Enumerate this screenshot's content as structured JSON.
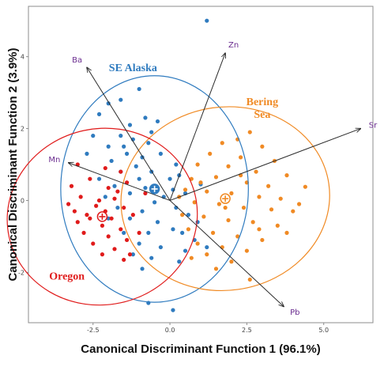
{
  "colors": {
    "se_alaska": "#2f7bbf",
    "bering_sea": "#f08a24",
    "oregon": "#e01b1b",
    "vector": "#2b2b2b",
    "vector_label": "#6a2c8f",
    "frame": "#8c8c8c"
  },
  "chart_data": {
    "type": "scatter",
    "xlabel": "Canonical Discriminant Function 1 (96.1%)",
    "ylabel": "Canonical Discriminant Function 2 (3.9%)",
    "xlim": [
      -4.6,
      6.6
    ],
    "ylim": [
      -3.4,
      5.4
    ],
    "grid": false,
    "x_ticks": [
      {
        "value": -2.5,
        "label": "-2.5"
      },
      {
        "value": 0,
        "label": "0.0"
      },
      {
        "value": 2.5,
        "label": "2.5"
      },
      {
        "value": 5,
        "label": "5.0"
      }
    ],
    "y_ticks": [
      {
        "value": -2,
        "label": "-2"
      },
      {
        "value": 0,
        "label": "0"
      },
      {
        "value": 2,
        "label": "2"
      },
      {
        "value": 4,
        "label": "4"
      }
    ],
    "vectors": [
      {
        "name": "Ba",
        "x": -2.7,
        "y": 3.7
      },
      {
        "name": "Zn",
        "x": 1.8,
        "y": 4.1
      },
      {
        "name": "Sr",
        "x": 6.2,
        "y": 2.0
      },
      {
        "name": "Mn",
        "x": -3.3,
        "y": 1.05
      },
      {
        "name": "Pb",
        "x": 3.7,
        "y": -2.95
      }
    ],
    "groups": [
      {
        "name": "SE Alaska",
        "color_key": "se_alaska",
        "label_lines": [
          "SE Alaska"
        ],
        "label_at": [
          -1.2,
          3.6
        ],
        "centroid": [
          -0.5,
          0.32
        ],
        "ellipse": {
          "rx": 3.05,
          "ry": 3.15,
          "rotate": 0
        },
        "points": [
          [
            1.2,
            5.0
          ],
          [
            -1.0,
            3.1
          ],
          [
            -1.6,
            2.8
          ],
          [
            -2.0,
            2.7
          ],
          [
            -0.8,
            2.3
          ],
          [
            -1.3,
            2.1
          ],
          [
            -2.3,
            2.4
          ],
          [
            -0.4,
            2.2
          ],
          [
            -1.6,
            1.8
          ],
          [
            -2.5,
            1.8
          ],
          [
            -1.2,
            1.7
          ],
          [
            -0.7,
            1.6
          ],
          [
            -2.0,
            1.5
          ],
          [
            -1.4,
            1.3
          ],
          [
            -0.9,
            1.2
          ],
          [
            -2.7,
            1.3
          ],
          [
            -1.9,
            1.1
          ],
          [
            -0.3,
            1.3
          ],
          [
            -1.1,
            0.95
          ],
          [
            0.2,
            1.0
          ],
          [
            -1.6,
            0.8
          ],
          [
            -0.6,
            0.8
          ],
          [
            -2.3,
            0.6
          ],
          [
            -1.0,
            0.6
          ],
          [
            0.3,
            0.7
          ],
          [
            -1.8,
            0.4
          ],
          [
            -0.8,
            0.35
          ],
          [
            -1.3,
            0.2
          ],
          [
            0.1,
            0.3
          ],
          [
            -2.1,
            0.1
          ],
          [
            -0.5,
            -0.05
          ],
          [
            -1.7,
            -0.2
          ],
          [
            -0.9,
            -0.3
          ],
          [
            0.2,
            -0.2
          ],
          [
            -1.3,
            -0.5
          ],
          [
            -0.4,
            -0.6
          ],
          [
            -2.0,
            -0.5
          ],
          [
            -0.7,
            -0.9
          ],
          [
            -1.5,
            -0.9
          ],
          [
            0.1,
            -0.8
          ],
          [
            -1.0,
            -1.2
          ],
          [
            -0.3,
            -1.3
          ],
          [
            0.5,
            -1.4
          ],
          [
            -0.6,
            -1.6
          ],
          [
            0.8,
            -1.1
          ],
          [
            0.4,
            -0.9
          ],
          [
            0.6,
            -0.4
          ],
          [
            0.9,
            -0.6
          ],
          [
            1.2,
            -1.3
          ],
          [
            0.3,
            -1.7
          ],
          [
            -0.7,
            -2.85
          ],
          [
            0.1,
            -3.05
          ],
          [
            -0.9,
            -1.9
          ],
          [
            -1.2,
            -1.5
          ],
          [
            0.0,
            0.6
          ],
          [
            -0.2,
            0.1
          ],
          [
            0.5,
            0.2
          ],
          [
            1.0,
            0.45
          ],
          [
            -1.5,
            1.5
          ],
          [
            -0.6,
            1.9
          ]
        ]
      },
      {
        "name": "Bering Sea",
        "color_key": "bering_sea",
        "label_lines": [
          "Bering",
          "Sea"
        ],
        "label_at": [
          3.0,
          2.65
        ],
        "centroid": [
          1.8,
          0.05
        ],
        "ellipse": {
          "rx": 3.4,
          "ry": 2.55,
          "rotate": -8
        },
        "points": [
          [
            2.6,
            1.9
          ],
          [
            2.2,
            1.7
          ],
          [
            1.7,
            1.6
          ],
          [
            3.0,
            1.5
          ],
          [
            1.3,
            1.3
          ],
          [
            2.3,
            1.2
          ],
          [
            3.4,
            1.1
          ],
          [
            0.9,
            1.0
          ],
          [
            1.9,
            0.95
          ],
          [
            2.8,
            0.8
          ],
          [
            3.8,
            0.7
          ],
          [
            0.7,
            0.6
          ],
          [
            1.5,
            0.65
          ],
          [
            2.5,
            0.5
          ],
          [
            3.2,
            0.4
          ],
          [
            4.4,
            0.38
          ],
          [
            0.5,
            0.3
          ],
          [
            1.2,
            0.25
          ],
          [
            2.0,
            0.2
          ],
          [
            2.9,
            0.1
          ],
          [
            3.6,
            0.05
          ],
          [
            0.8,
            -0.05
          ],
          [
            1.6,
            -0.1
          ],
          [
            2.4,
            -0.2
          ],
          [
            3.3,
            -0.25
          ],
          [
            4.0,
            -0.3
          ],
          [
            0.4,
            -0.4
          ],
          [
            1.1,
            -0.45
          ],
          [
            1.9,
            -0.55
          ],
          [
            2.7,
            -0.6
          ],
          [
            3.5,
            -0.7
          ],
          [
            0.6,
            -0.8
          ],
          [
            1.4,
            -0.9
          ],
          [
            2.2,
            -1.0
          ],
          [
            3.0,
            -1.1
          ],
          [
            0.9,
            -1.2
          ],
          [
            1.7,
            -1.3
          ],
          [
            2.5,
            -1.4
          ],
          [
            1.2,
            -1.5
          ],
          [
            2.0,
            -1.7
          ],
          [
            0.7,
            -1.6
          ],
          [
            2.6,
            -2.2
          ],
          [
            1.5,
            -1.9
          ],
          [
            3.8,
            -0.9
          ],
          [
            2.3,
            0.7
          ],
          [
            1.0,
            0.5
          ],
          [
            1.8,
            -0.2
          ],
          [
            2.9,
            -0.8
          ],
          [
            0.3,
            0.1
          ],
          [
            4.2,
            -0.1
          ]
        ]
      },
      {
        "name": "Oregon",
        "color_key": "oregon",
        "label_lines": [
          "Oregon"
        ],
        "label_at": [
          -3.35,
          -2.2
        ],
        "centroid": [
          -2.2,
          -0.45
        ],
        "ellipse": {
          "rx": 3.1,
          "ry": 2.45,
          "rotate": -12
        },
        "points": [
          [
            -3.0,
            1.0
          ],
          [
            -2.1,
            0.9
          ],
          [
            -1.6,
            0.8
          ],
          [
            -2.6,
            0.6
          ],
          [
            -3.2,
            0.4
          ],
          [
            -1.4,
            0.5
          ],
          [
            -2.0,
            0.35
          ],
          [
            -2.9,
            0.1
          ],
          [
            -1.8,
            0.05
          ],
          [
            -3.3,
            -0.1
          ],
          [
            -2.4,
            -0.15
          ],
          [
            -1.5,
            -0.2
          ],
          [
            -2.7,
            -0.4
          ],
          [
            -1.9,
            -0.5
          ],
          [
            -3.0,
            -0.6
          ],
          [
            -2.2,
            -0.7
          ],
          [
            -1.6,
            -0.8
          ],
          [
            -2.8,
            -0.9
          ],
          [
            -2.0,
            -1.0
          ],
          [
            -1.4,
            -1.1
          ],
          [
            -2.5,
            -1.2
          ],
          [
            -1.8,
            -1.35
          ],
          [
            -1.3,
            -1.5
          ],
          [
            -2.2,
            -1.5
          ],
          [
            -1.5,
            -1.65
          ],
          [
            -2.6,
            -0.5
          ],
          [
            -1.7,
            0.25
          ],
          [
            -2.3,
            0.0
          ],
          [
            -3.1,
            -0.3
          ],
          [
            -1.2,
            -0.4
          ],
          [
            -0.8,
            0.2
          ],
          [
            -2.1,
            -0.3
          ],
          [
            -1.0,
            -0.9
          ]
        ]
      }
    ]
  }
}
